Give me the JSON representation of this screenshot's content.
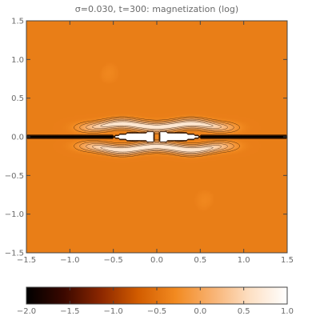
{
  "chart_data": {
    "type": "heatmap",
    "title": "σ=0.030, t=300: magnetization (log)",
    "x_range": [
      -1.5,
      1.5
    ],
    "y_range": [
      -1.5,
      1.5
    ],
    "x_ticks": [
      -1.5,
      -1.0,
      -0.5,
      0.0,
      0.5,
      1.0,
      1.5
    ],
    "x_tick_labels": [
      "−1.5",
      "−1.0",
      "−0.5",
      "0.0",
      "0.5",
      "1.0",
      "1.5"
    ],
    "y_ticks": [
      1.5,
      1.0,
      0.5,
      0.0,
      -0.5,
      -1.0,
      -1.5
    ],
    "y_tick_labels": [
      "1.5",
      "1.0",
      "0.5",
      "0.0",
      "−0.5",
      "−1.0",
      "−1.5"
    ],
    "colorbar": {
      "range": [
        -2.0,
        1.0
      ],
      "ticks": [
        -2.0,
        -1.5,
        -1.0,
        -0.5,
        0.0,
        0.5,
        1.0
      ],
      "tick_labels": [
        "−2.0",
        "−1.5",
        "−1.0",
        "−0.5",
        "0.0",
        "0.5",
        "1.0"
      ],
      "colors": [
        "#000000",
        "#3a0800",
        "#8c2700",
        "#d25c00",
        "#f28a20",
        "#f8b272",
        "#fde0c4",
        "#ffffff"
      ]
    },
    "contour_levels": [
      -1.5,
      -1.25,
      -1.0,
      -0.85,
      -0.7,
      -0.55,
      -0.4,
      -0.25,
      -0.1,
      0.1,
      0.3,
      0.5,
      0.7,
      0.9
    ],
    "grid": false
  }
}
